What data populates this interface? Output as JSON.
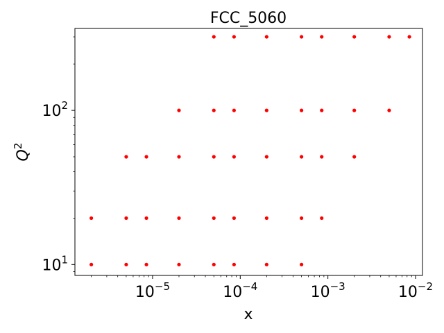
{
  "chart_data": {
    "type": "scatter",
    "title": "FCC_5060",
    "xlabel": "x",
    "ylabel": "Q",
    "ylabel_superscript": "2",
    "xscale": "log",
    "yscale": "log",
    "xlim": [
      1.3e-06,
      0.012
    ],
    "ylim": [
      8.5,
      340
    ],
    "x_ticks": [
      {
        "value": 1e-05,
        "base": "10",
        "exponent": "−5"
      },
      {
        "value": 0.0001,
        "base": "10",
        "exponent": "−4"
      },
      {
        "value": 0.001,
        "base": "10",
        "exponent": "−3"
      },
      {
        "value": 0.01,
        "base": "10",
        "exponent": "−2"
      }
    ],
    "y_ticks": [
      {
        "value": 10,
        "base": "10",
        "exponent": "1"
      },
      {
        "value": 100,
        "base": "10",
        "exponent": "2"
      }
    ],
    "grid": false,
    "marker_color": "#ff0000",
    "series": [
      {
        "points": [
          {
            "x": 2e-06,
            "y": 10
          },
          {
            "x": 5e-06,
            "y": 10
          },
          {
            "x": 8.5e-06,
            "y": 10
          },
          {
            "x": 2e-05,
            "y": 10
          },
          {
            "x": 5e-05,
            "y": 10
          },
          {
            "x": 8.5e-05,
            "y": 10
          },
          {
            "x": 0.0002,
            "y": 10
          },
          {
            "x": 0.0005,
            "y": 10
          },
          {
            "x": 2e-06,
            "y": 20
          },
          {
            "x": 5e-06,
            "y": 20
          },
          {
            "x": 8.5e-06,
            "y": 20
          },
          {
            "x": 2e-05,
            "y": 20
          },
          {
            "x": 5e-05,
            "y": 20
          },
          {
            "x": 8.5e-05,
            "y": 20
          },
          {
            "x": 0.0002,
            "y": 20
          },
          {
            "x": 0.0005,
            "y": 20
          },
          {
            "x": 0.00085,
            "y": 20
          },
          {
            "x": 5e-06,
            "y": 50
          },
          {
            "x": 8.5e-06,
            "y": 50
          },
          {
            "x": 2e-05,
            "y": 50
          },
          {
            "x": 5e-05,
            "y": 50
          },
          {
            "x": 8.5e-05,
            "y": 50
          },
          {
            "x": 0.0002,
            "y": 50
          },
          {
            "x": 0.0005,
            "y": 50
          },
          {
            "x": 0.00085,
            "y": 50
          },
          {
            "x": 0.002,
            "y": 50
          },
          {
            "x": 2e-05,
            "y": 100
          },
          {
            "x": 5e-05,
            "y": 100
          },
          {
            "x": 8.5e-05,
            "y": 100
          },
          {
            "x": 0.0002,
            "y": 100
          },
          {
            "x": 0.0005,
            "y": 100
          },
          {
            "x": 0.00085,
            "y": 100
          },
          {
            "x": 0.002,
            "y": 100
          },
          {
            "x": 0.005,
            "y": 100
          },
          {
            "x": 5e-05,
            "y": 300
          },
          {
            "x": 8.5e-05,
            "y": 300
          },
          {
            "x": 0.0002,
            "y": 300
          },
          {
            "x": 0.0005,
            "y": 300
          },
          {
            "x": 0.00085,
            "y": 300
          },
          {
            "x": 0.002,
            "y": 300
          },
          {
            "x": 0.005,
            "y": 300
          },
          {
            "x": 0.0085,
            "y": 300
          }
        ]
      }
    ]
  }
}
